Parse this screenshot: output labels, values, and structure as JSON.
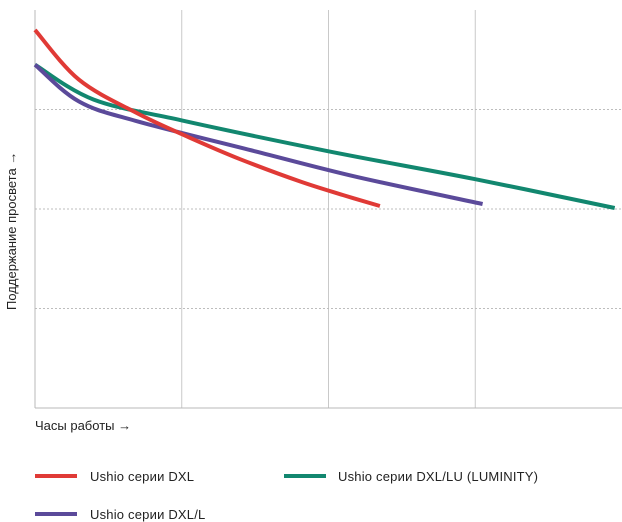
{
  "chart_data": {
    "type": "line",
    "xlabel": "Часы работы →",
    "ylabel": "Поддержание просвета →",
    "xlim": [
      0,
      4
    ],
    "ylim": [
      0,
      4
    ],
    "grid": true,
    "legend_position": "bottom",
    "series": [
      {
        "name": "Ushio серии DXL",
        "color": "#e03a36",
        "points": [
          [
            0,
            3.8
          ],
          [
            0.3,
            3.3
          ],
          [
            0.7,
            2.96
          ],
          [
            1.05,
            2.72
          ],
          [
            1.4,
            2.5
          ],
          [
            1.8,
            2.28
          ],
          [
            2.1,
            2.14
          ],
          [
            2.35,
            2.03
          ]
        ]
      },
      {
        "name": "Ushio серии DXL/LU (LUMINITY)",
        "color": "#12876f",
        "points": [
          [
            0,
            3.45
          ],
          [
            0.4,
            3.1
          ],
          [
            1,
            2.89
          ],
          [
            2,
            2.58
          ],
          [
            3,
            2.3
          ],
          [
            3.95,
            2.01
          ]
        ]
      },
      {
        "name": "Ushio серии DXL/L",
        "color": "#5b4a9a",
        "points": [
          [
            0,
            3.45
          ],
          [
            0.3,
            3.08
          ],
          [
            0.7,
            2.88
          ],
          [
            1.5,
            2.58
          ],
          [
            2.2,
            2.32
          ],
          [
            3.05,
            2.05
          ]
        ]
      }
    ]
  }
}
